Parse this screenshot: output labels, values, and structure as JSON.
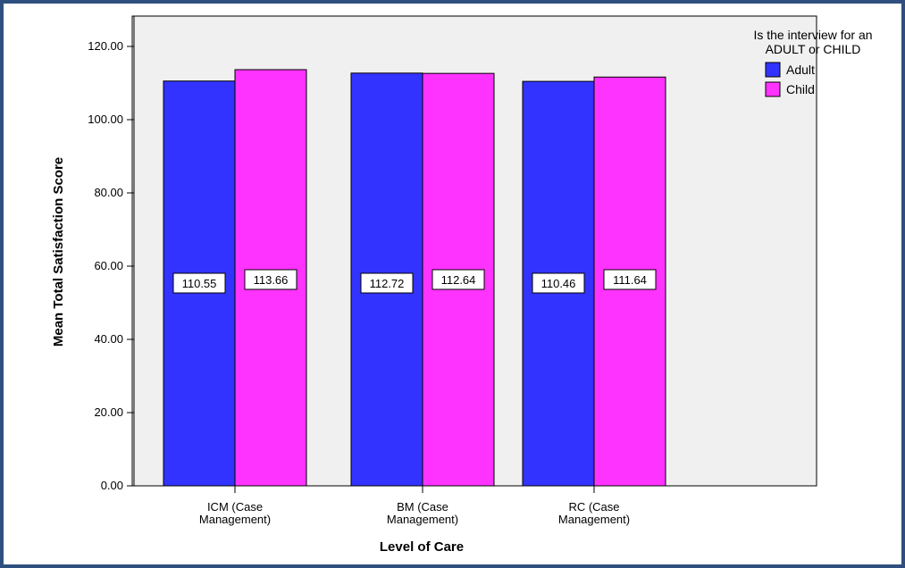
{
  "colors": {
    "frame": "#2f4f7f",
    "plot_background": "#f0f0f0",
    "adult": "#3333ff",
    "child": "#ff33ff"
  },
  "chart_data": {
    "type": "bar",
    "categories": [
      [
        "ICM (Case",
        "Management)"
      ],
      [
        "BM (Case",
        "Management)"
      ],
      [
        "RC (Case",
        "Management)"
      ]
    ],
    "series": [
      {
        "name": "Adult",
        "values": [
          110.55,
          112.72,
          110.46
        ],
        "color": "#3333ff"
      },
      {
        "name": "Child",
        "values": [
          113.66,
          112.64,
          111.64
        ],
        "color": "#ff33ff"
      }
    ],
    "data_labels": [
      [
        "110.55",
        "113.66"
      ],
      [
        "112.72",
        "112.64"
      ],
      [
        "110.46",
        "111.64"
      ]
    ],
    "xlabel": "Level of Care",
    "ylabel": "Mean Total Satisfaction Score",
    "ylim": [
      0,
      120
    ],
    "yticks": [
      "0.00",
      "20.00",
      "40.00",
      "60.00",
      "80.00",
      "100.00",
      "120.00"
    ],
    "legend": {
      "title": [
        "Is the interview for an",
        "ADULT or CHILD"
      ],
      "position": "top-right"
    },
    "grid": false
  }
}
